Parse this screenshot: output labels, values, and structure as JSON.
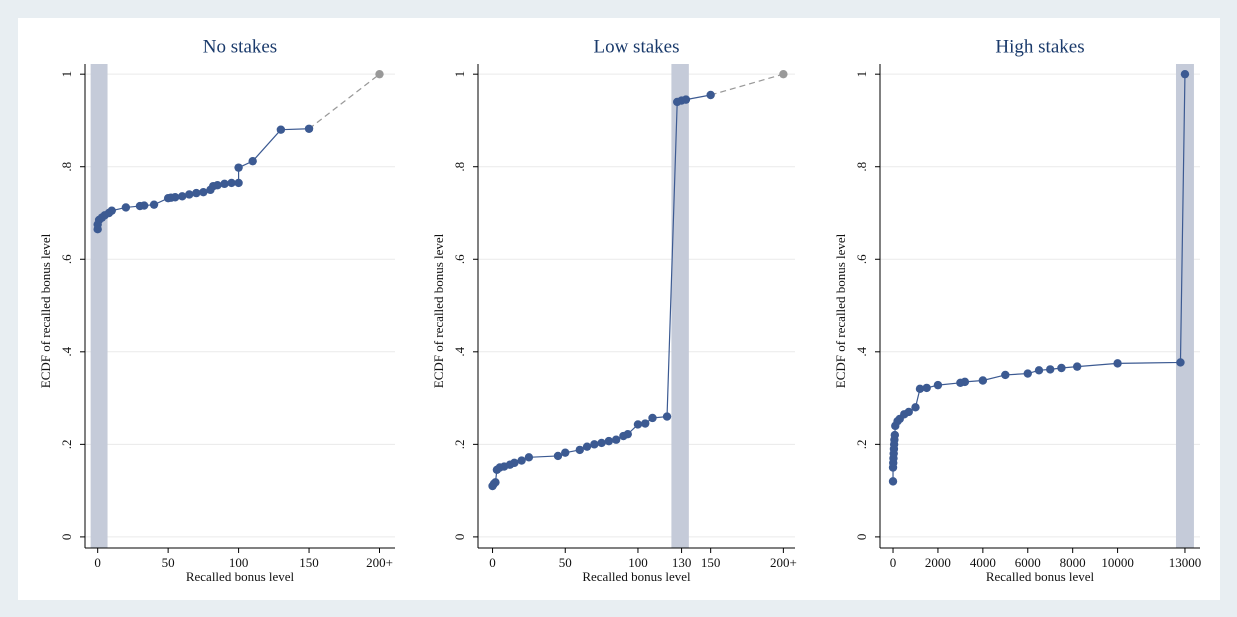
{
  "chart_data": [
    {
      "type": "line",
      "title": "No stakes",
      "xlabel": "Recalled bonus level",
      "ylabel": "ECDF of recalled bonus level",
      "x": [
        0,
        0,
        1,
        3,
        5,
        8,
        10,
        20,
        30,
        33,
        40,
        50,
        52,
        55,
        60,
        65,
        70,
        75,
        80,
        82,
        85,
        90,
        95,
        100,
        100,
        110,
        130,
        150,
        200
      ],
      "values": [
        0.665,
        0.675,
        0.685,
        0.69,
        0.695,
        0.7,
        0.705,
        0.712,
        0.715,
        0.716,
        0.718,
        0.732,
        0.733,
        0.734,
        0.736,
        0.74,
        0.743,
        0.745,
        0.75,
        0.758,
        0.76,
        0.763,
        0.765,
        0.765,
        0.798,
        0.812,
        0.88,
        0.882,
        1
      ],
      "color": "#3c5a92",
      "overflow_color": "#999999",
      "band": [
        -5,
        7
      ],
      "band_color": "#c5cbd9",
      "xlim": [
        -9,
        211
      ],
      "ylim": [
        -0.024,
        1.022
      ],
      "xticks": [
        0,
        50,
        100,
        150,
        {
          "value": 200,
          "label": "200+"
        }
      ],
      "yticks": [
        0,
        {
          "value": 0.2,
          "label": ".2"
        },
        {
          "value": 0.4,
          "label": ".4"
        },
        {
          "value": 0.6,
          "label": ".6"
        },
        {
          "value": 0.8,
          "label": ".8"
        },
        1
      ],
      "grid": true
    },
    {
      "type": "line",
      "title": "Low stakes",
      "xlabel": "Recalled bonus level",
      "ylabel": "ECDF of recalled bonus level",
      "x": [
        0,
        1,
        2,
        3,
        5,
        8,
        12,
        15,
        20,
        25,
        45,
        50,
        60,
        65,
        70,
        75,
        80,
        85,
        90,
        93,
        100,
        105,
        110,
        120,
        127,
        130,
        133,
        150,
        200
      ],
      "values": [
        0.11,
        0.115,
        0.118,
        0.145,
        0.15,
        0.152,
        0.156,
        0.16,
        0.165,
        0.172,
        0.175,
        0.182,
        0.188,
        0.195,
        0.2,
        0.203,
        0.207,
        0.21,
        0.218,
        0.222,
        0.243,
        0.245,
        0.257,
        0.26,
        0.94,
        0.943,
        0.945,
        0.955,
        1
      ],
      "color": "#3c5a92",
      "overflow_color": "#999999",
      "band": [
        123,
        135
      ],
      "band_color": "#c5cbd9",
      "xlim": [
        -10,
        208
      ],
      "ylim": [
        -0.024,
        1.022
      ],
      "xticks": [
        0,
        50,
        100,
        130,
        150,
        {
          "value": 200,
          "label": "200+"
        }
      ],
      "yticks": [
        0,
        {
          "value": 0.2,
          "label": ".2"
        },
        {
          "value": 0.4,
          "label": ".4"
        },
        {
          "value": 0.6,
          "label": ".6"
        },
        {
          "value": 0.8,
          "label": ".8"
        },
        1
      ],
      "grid": true
    },
    {
      "type": "line",
      "title": "High stakes",
      "xlabel": "Recalled bonus level",
      "ylabel": "ECDF of recalled bonus level",
      "x": [
        0,
        0,
        10,
        20,
        30,
        40,
        50,
        60,
        80,
        100,
        200,
        300,
        500,
        700,
        1000,
        1200,
        1500,
        2000,
        3000,
        3200,
        4000,
        5000,
        6000,
        6500,
        7000,
        7500,
        8200,
        10000,
        12800,
        13000
      ],
      "values": [
        0.12,
        0.15,
        0.16,
        0.17,
        0.18,
        0.19,
        0.2,
        0.21,
        0.22,
        0.24,
        0.25,
        0.255,
        0.265,
        0.27,
        0.28,
        0.32,
        0.322,
        0.328,
        0.333,
        0.335,
        0.338,
        0.35,
        0.353,
        0.36,
        0.362,
        0.365,
        0.368,
        0.375,
        0.377,
        1
      ],
      "color": "#3c5a92",
      "band": [
        12600,
        13400
      ],
      "band_color": "#c5cbd9",
      "xlim": [
        -580,
        13670
      ],
      "ylim": [
        -0.024,
        1.022
      ],
      "xticks": [
        0,
        2000,
        4000,
        6000,
        8000,
        10000,
        13000
      ],
      "yticks": [
        0,
        {
          "value": 0.2,
          "label": ".2"
        },
        {
          "value": 0.4,
          "label": ".4"
        },
        {
          "value": 0.6,
          "label": ".6"
        },
        {
          "value": 0.8,
          "label": ".8"
        },
        1
      ],
      "grid": true
    }
  ]
}
